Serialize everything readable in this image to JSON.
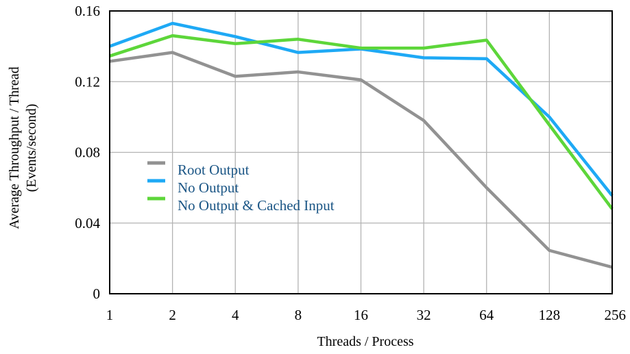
{
  "chart_data": {
    "type": "line",
    "categories": [
      "1",
      "2",
      "4",
      "8",
      "16",
      "32",
      "64",
      "128",
      "256"
    ],
    "series": [
      {
        "name": "Root Output",
        "color": "#929292",
        "values": [
          0.1315,
          0.1365,
          0.123,
          0.1255,
          0.121,
          0.098,
          0.06,
          0.0245,
          0.015
        ]
      },
      {
        "name": "No Output",
        "color": "#1ea9f5",
        "values": [
          0.14,
          0.153,
          0.1455,
          0.1365,
          0.1385,
          0.1335,
          0.133,
          0.1,
          0.0555
        ]
      },
      {
        "name": "No Output & Cached Input",
        "color": "#5dd63a",
        "values": [
          0.1345,
          0.146,
          0.1415,
          0.144,
          0.139,
          0.139,
          0.1435,
          0.0955,
          0.048
        ]
      }
    ],
    "yticks": [
      "0",
      "0.04",
      "0.08",
      "0.12",
      "0.16"
    ],
    "ylim": [
      0,
      0.16
    ],
    "xlabel": "Threads / Process",
    "ylabel": "Average Throughput / Thread",
    "ylabel2": "(Events/second)",
    "grid": true,
    "legend_position": "center-left"
  }
}
